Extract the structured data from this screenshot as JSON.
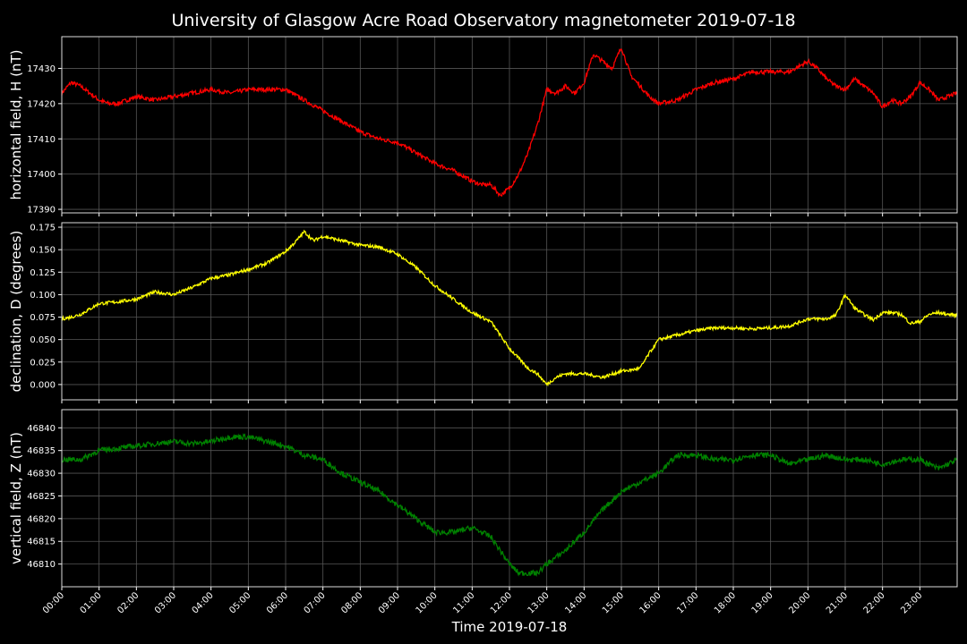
{
  "title": "University of Glasgow Acre Road Observatory magnetometer 2019-07-18",
  "chart_data": [
    {
      "type": "line",
      "ylabel": "horizontal field, H (nT)",
      "color": "#ff0000",
      "ylim": [
        17389,
        17439
      ],
      "yticks": [
        17390,
        17400,
        17410,
        17420,
        17430
      ],
      "ytick_labels": [
        "17390",
        "17400",
        "17410",
        "17420",
        "17430"
      ],
      "grid": true,
      "series": [
        {
          "x_hours": [
            0,
            0.25,
            0.5,
            0.75,
            1,
            1.25,
            1.5,
            1.75,
            2,
            2.5,
            3,
            3.5,
            4,
            4.5,
            5,
            5.5,
            6,
            6.5,
            7,
            7.5,
            8,
            8.5,
            9,
            9.5,
            10,
            10.5,
            11,
            11.25,
            11.5,
            11.75,
            12,
            12.25,
            12.5,
            12.75,
            13,
            13.25,
            13.5,
            13.75,
            14,
            14.25,
            14.5,
            14.75,
            15,
            15.25,
            15.5,
            15.75,
            16,
            16.5,
            17,
            17.5,
            18,
            18.5,
            19,
            19.5,
            20,
            20.25,
            20.5,
            20.75,
            21,
            21.25,
            21.5,
            21.75,
            22,
            22.25,
            22.5,
            22.75,
            23,
            23.25,
            23.5,
            23.75,
            24
          ],
          "values": [
            17423,
            17426,
            17425,
            17423,
            17421,
            17420,
            17420,
            17421,
            17422,
            17421,
            17422,
            17423,
            17424,
            17423,
            17424,
            17424,
            17424,
            17421,
            17418,
            17415,
            17412,
            17410,
            17409,
            17406,
            17403,
            17401,
            17398,
            17397,
            17397,
            17394,
            17396,
            17400,
            17406,
            17414,
            17424,
            17423,
            17425,
            17423,
            17426,
            17434,
            17432,
            17430,
            17436,
            17428,
            17425,
            17422,
            17420,
            17421,
            17424,
            17426,
            17427,
            17429,
            17429,
            17429,
            17432,
            17430,
            17427,
            17425,
            17424,
            17427,
            17425,
            17423,
            17419,
            17421,
            17420,
            17422,
            17426,
            17424,
            17421,
            17422,
            17423
          ]
        }
      ]
    },
    {
      "type": "line",
      "ylabel": "declination, D (degrees)",
      "color": "#ffff00",
      "ylim": [
        -0.017,
        0.18
      ],
      "yticks": [
        0.0,
        0.025,
        0.05,
        0.075,
        0.1,
        0.125,
        0.15,
        0.175
      ],
      "ytick_labels": [
        "0.000",
        "0.025",
        "0.050",
        "0.075",
        "0.100",
        "0.125",
        "0.150",
        "0.175"
      ],
      "grid": true,
      "series": [
        {
          "x_hours": [
            0,
            0.25,
            0.5,
            1,
            1.5,
            2,
            2.5,
            3,
            3.5,
            4,
            4.5,
            5,
            5.5,
            6,
            6.25,
            6.5,
            6.75,
            7,
            7.5,
            8,
            8.5,
            9,
            9.5,
            10,
            10.5,
            11,
            11.5,
            12,
            12.5,
            12.75,
            13,
            13.25,
            13.5,
            14,
            14.5,
            15,
            15.25,
            15.5,
            15.75,
            16,
            16.5,
            17,
            17.5,
            18,
            18.5,
            19,
            19.5,
            20,
            20.5,
            20.75,
            21,
            21.25,
            21.5,
            21.75,
            22,
            22.25,
            22.5,
            22.75,
            23,
            23.25,
            23.5,
            23.75,
            24
          ],
          "values": [
            0.073,
            0.075,
            0.078,
            0.09,
            0.092,
            0.095,
            0.103,
            0.1,
            0.108,
            0.118,
            0.122,
            0.128,
            0.135,
            0.148,
            0.158,
            0.17,
            0.16,
            0.165,
            0.16,
            0.155,
            0.153,
            0.145,
            0.13,
            0.11,
            0.095,
            0.08,
            0.07,
            0.04,
            0.018,
            0.012,
            0.0,
            0.008,
            0.012,
            0.012,
            0.008,
            0.015,
            0.016,
            0.018,
            0.035,
            0.05,
            0.055,
            0.06,
            0.063,
            0.063,
            0.062,
            0.063,
            0.065,
            0.073,
            0.073,
            0.077,
            0.1,
            0.085,
            0.078,
            0.072,
            0.08,
            0.08,
            0.078,
            0.068,
            0.07,
            0.078,
            0.08,
            0.078,
            0.077
          ]
        }
      ]
    },
    {
      "type": "line",
      "ylabel": "vertical field, Z (nT)",
      "color": "#008000",
      "ylim": [
        46805,
        46844
      ],
      "yticks": [
        46810,
        46815,
        46820,
        46825,
        46830,
        46835,
        46840
      ],
      "ytick_labels": [
        "46810",
        "46815",
        "46820",
        "46825",
        "46830",
        "46835",
        "46840"
      ],
      "grid": true,
      "series": [
        {
          "x_hours": [
            0,
            0.5,
            1,
            1.5,
            2,
            2.5,
            3,
            3.5,
            4,
            4.5,
            5,
            5.5,
            6,
            6.5,
            7,
            7.5,
            8,
            8.5,
            9,
            9.5,
            10,
            10.5,
            11,
            11.5,
            12,
            12.25,
            12.5,
            12.75,
            13,
            13.5,
            14,
            14.5,
            15,
            15.5,
            16,
            16.5,
            17,
            17.5,
            18,
            18.5,
            19,
            19.5,
            20,
            20.5,
            21,
            21.5,
            22,
            22.5,
            23,
            23.5,
            24
          ],
          "values": [
            46833,
            46833,
            46835,
            46835.5,
            46836,
            46836.5,
            46837,
            46836.5,
            46837,
            46838,
            46838,
            46837,
            46836,
            46834,
            46833,
            46830,
            46828,
            46826,
            46823,
            46820,
            46817,
            46817,
            46818,
            46816,
            46810,
            46808,
            46808,
            46808,
            46810,
            46813,
            46817,
            46822,
            46826,
            46828,
            46830,
            46834,
            46834,
            46833,
            46833,
            46834,
            46834,
            46832,
            46833,
            46834,
            46833,
            46833,
            46832,
            46833,
            46833,
            46831,
            46833
          ]
        }
      ]
    }
  ],
  "xaxis": {
    "label": "Time 2019-07-18",
    "range_hours": [
      0,
      24
    ],
    "tick_labels": [
      "00:00",
      "01:00",
      "02:00",
      "03:00",
      "04:00",
      "05:00",
      "06:00",
      "07:00",
      "08:00",
      "09:00",
      "10:00",
      "11:00",
      "12:00",
      "13:00",
      "14:00",
      "15:00",
      "16:00",
      "17:00",
      "18:00",
      "19:00",
      "20:00",
      "21:00",
      "22:00",
      "23:00"
    ]
  }
}
